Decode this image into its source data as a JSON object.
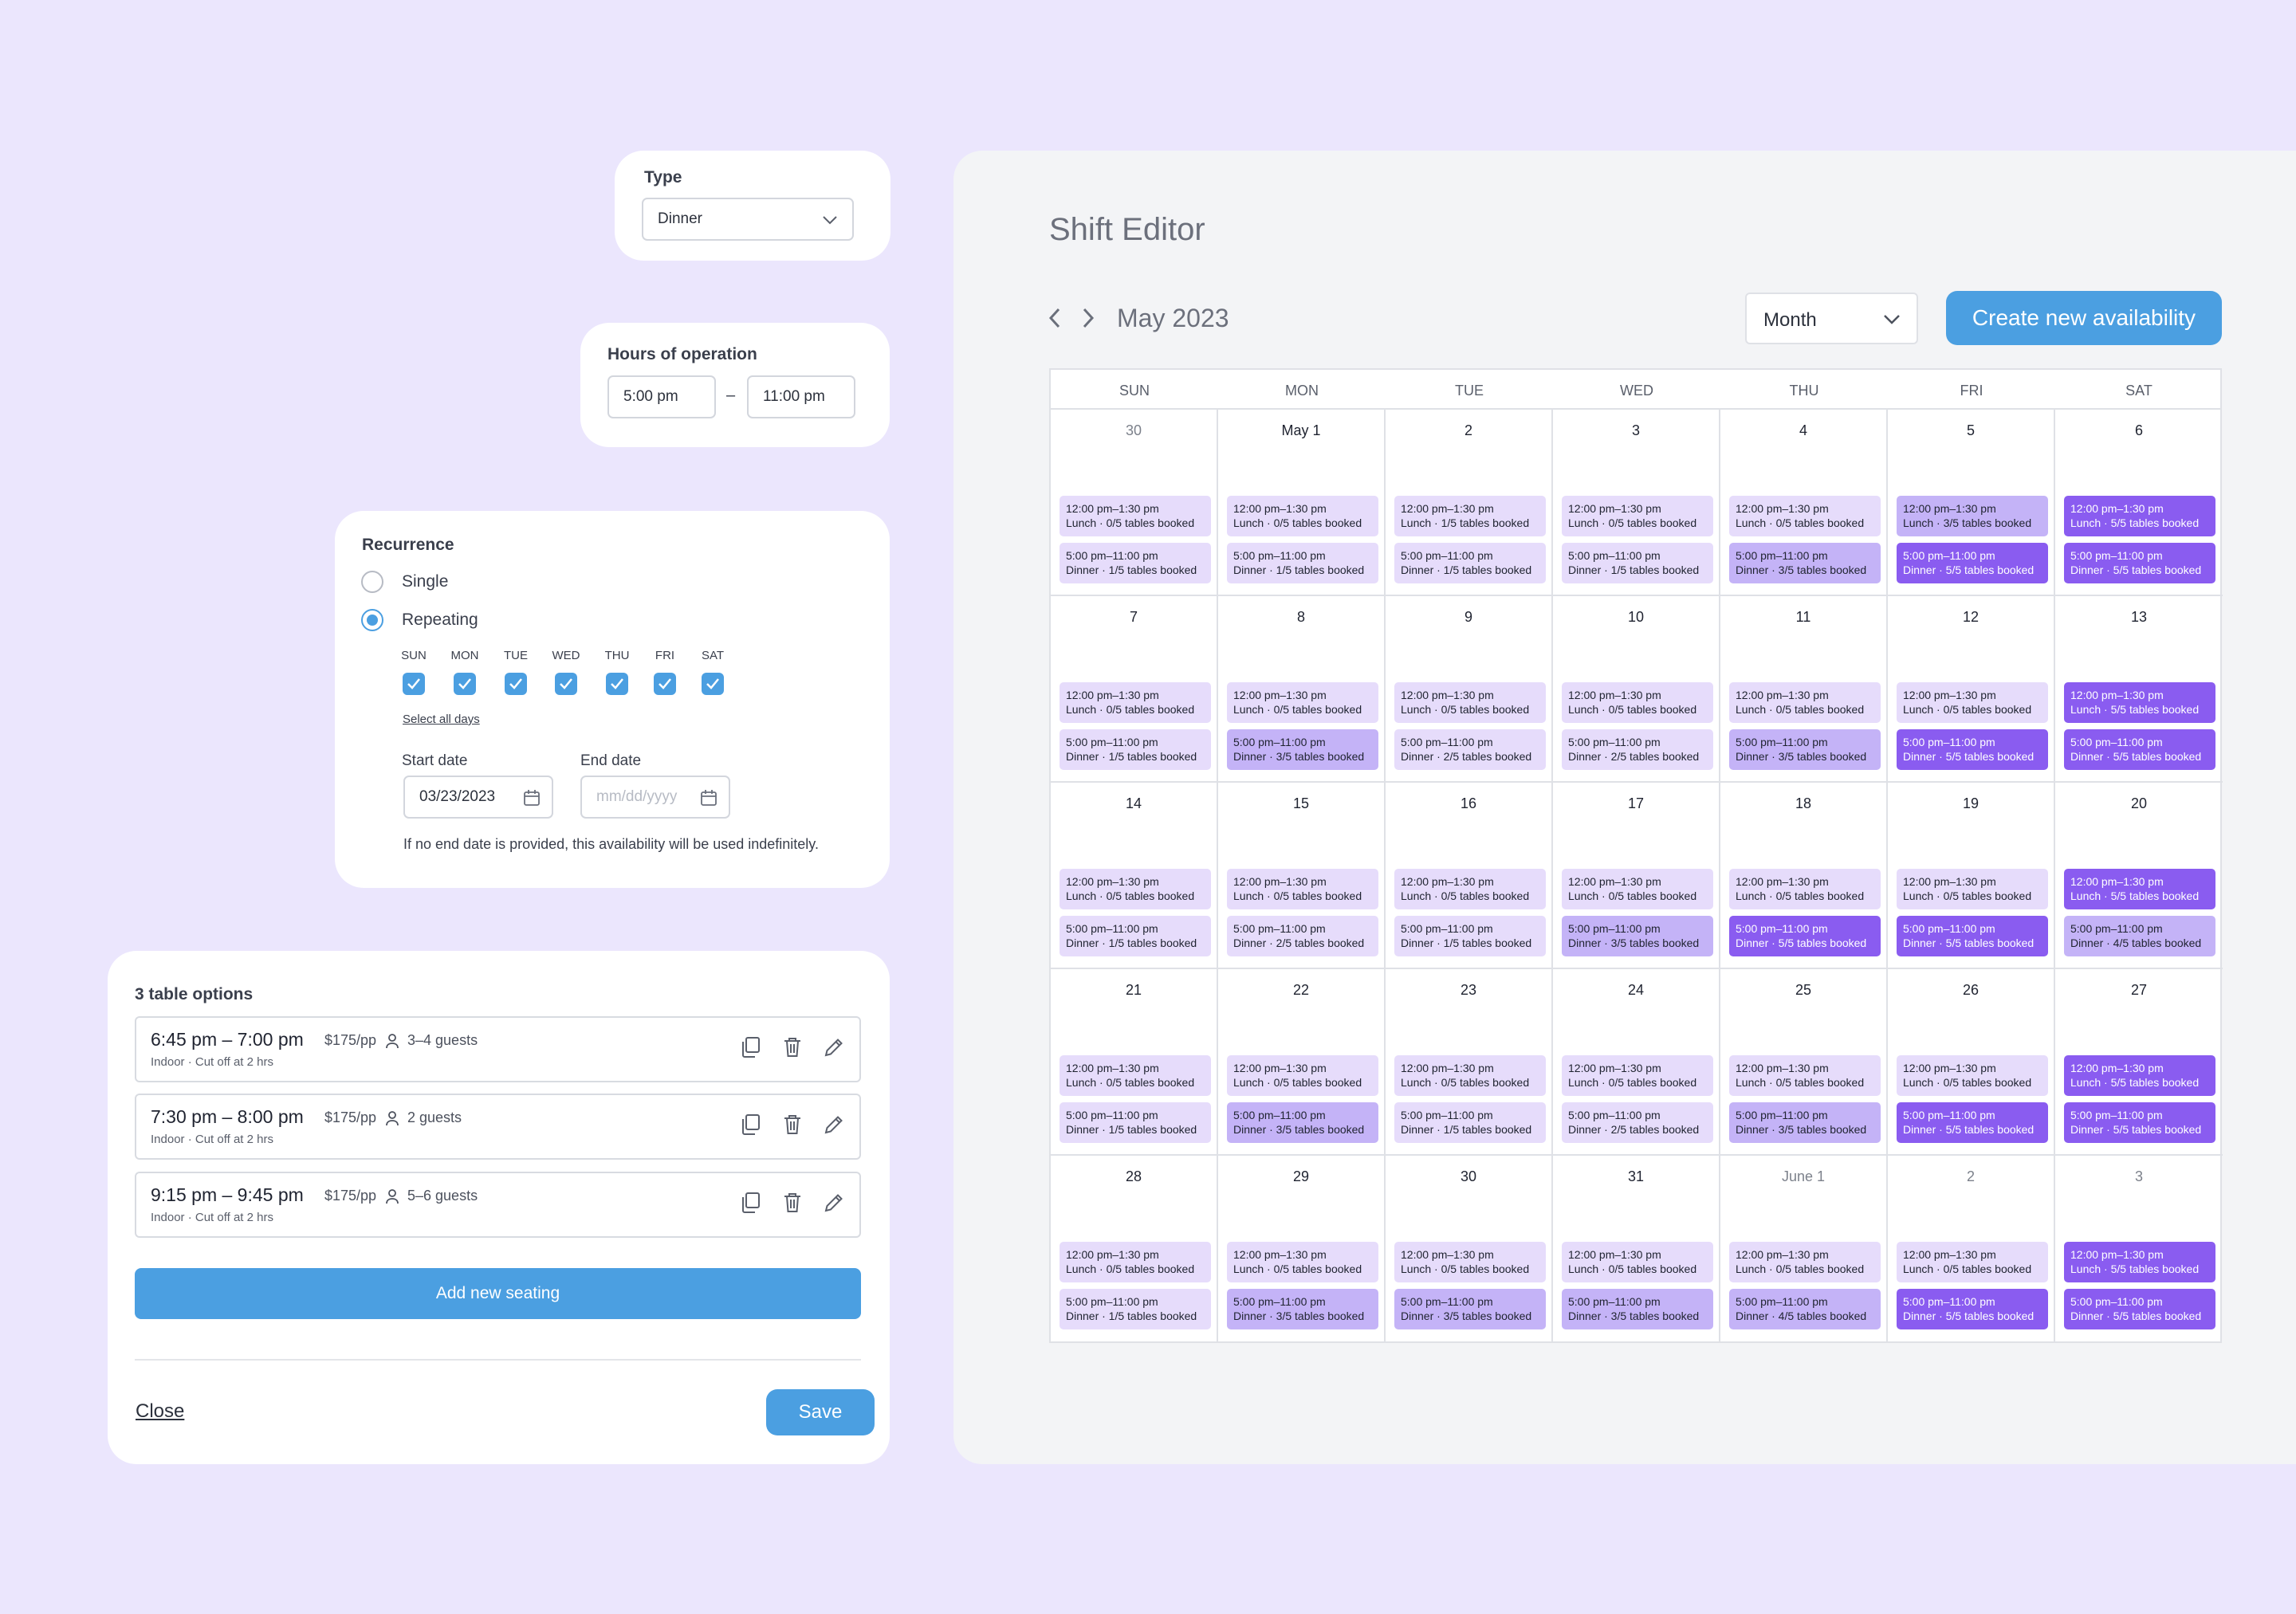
{
  "type_card": {
    "label": "Type",
    "value": "Dinner"
  },
  "hours_card": {
    "label": "Hours of operation",
    "start": "5:00 pm",
    "dash": "–",
    "end": "11:00 pm"
  },
  "recurrence": {
    "label": "Recurrence",
    "single": "Single",
    "repeating": "Repeating",
    "days": [
      "SUN",
      "MON",
      "TUE",
      "WED",
      "THU",
      "FRI",
      "SAT"
    ],
    "select_all": "Select all days",
    "start_label": "Start date",
    "start_value": "03/23/2023",
    "end_label": "End date",
    "end_placeholder": "mm/dd/yyyy",
    "note": "If no end date is provided, this availability will be used indefinitely."
  },
  "tables": {
    "title": "3 table options",
    "options": [
      {
        "time": "6:45 pm – 7:00 pm",
        "price": "$175/pp",
        "guests": "3–4 guests",
        "sub": "Indoor · Cut off at 2 hrs"
      },
      {
        "time": "7:30 pm – 8:00 pm",
        "price": "$175/pp",
        "guests": "2 guests",
        "sub": "Indoor · Cut off at 2 hrs"
      },
      {
        "time": "9:15 pm – 9:45 pm",
        "price": "$175/pp",
        "guests": "5–6 guests",
        "sub": "Indoor · Cut off at 2 hrs"
      }
    ],
    "add_label": "Add new seating",
    "close_label": "Close",
    "save_label": "Save"
  },
  "editor": {
    "title": "Shift Editor",
    "month_label": "May 2023",
    "view": "Month",
    "create_label": "Create new availability",
    "weekdays": [
      "SUN",
      "MON",
      "TUE",
      "WED",
      "THU",
      "FRI",
      "SAT"
    ],
    "lunch_time": "12:00 pm–1:30 pm",
    "dinner_time": "5:00 pm–11:00 pm",
    "weeks": [
      [
        {
          "d": "30",
          "out": true,
          "l": "Lunch · 0/5 tables booked",
          "lv": 0,
          "n": "Dinner · 1/5 tables booked",
          "nv": 1
        },
        {
          "d": "May 1",
          "l": "Lunch · 0/5 tables booked",
          "lv": 0,
          "n": "Dinner · 1/5 tables booked",
          "nv": 1
        },
        {
          "d": "2",
          "l": "Lunch · 1/5 tables booked",
          "lv": 1,
          "n": "Dinner · 1/5 tables booked",
          "nv": 1
        },
        {
          "d": "3",
          "l": "Lunch · 0/5 tables booked",
          "lv": 0,
          "n": "Dinner · 1/5 tables booked",
          "nv": 1
        },
        {
          "d": "4",
          "l": "Lunch · 0/5 tables booked",
          "lv": 0,
          "n": "Dinner · 3/5 tables booked",
          "nv": 3
        },
        {
          "d": "5",
          "l": "Lunch · 3/5 tables booked",
          "lv": 3,
          "n": "Dinner · 5/5 tables booked",
          "nv": 5
        },
        {
          "d": "6",
          "l": "Lunch · 5/5 tables booked",
          "lv": 5,
          "n": "Dinner · 5/5 tables booked",
          "nv": 5
        }
      ],
      [
        {
          "d": "7",
          "l": "Lunch · 0/5 tables booked",
          "lv": 0,
          "n": "Dinner · 1/5 tables booked",
          "nv": 1
        },
        {
          "d": "8",
          "l": "Lunch · 0/5 tables booked",
          "lv": 0,
          "n": "Dinner · 3/5 tables booked",
          "nv": 3
        },
        {
          "d": "9",
          "l": "Lunch · 0/5 tables booked",
          "lv": 0,
          "n": "Dinner · 2/5 tables booked",
          "nv": 2
        },
        {
          "d": "10",
          "l": "Lunch · 0/5 tables booked",
          "lv": 0,
          "n": "Dinner · 2/5 tables booked",
          "nv": 2
        },
        {
          "d": "11",
          "l": "Lunch · 0/5 tables booked",
          "lv": 0,
          "n": "Dinner · 3/5 tables booked",
          "nv": 3
        },
        {
          "d": "12",
          "l": "Lunch · 0/5 tables booked",
          "lv": 0,
          "n": "Dinner · 5/5 tables booked",
          "nv": 5
        },
        {
          "d": "13",
          "l": "Lunch · 5/5 tables booked",
          "lv": 5,
          "n": "Dinner · 5/5 tables booked",
          "nv": 5
        }
      ],
      [
        {
          "d": "14",
          "l": "Lunch · 0/5 tables booked",
          "lv": 0,
          "n": "Dinner · 1/5 tables booked",
          "nv": 1
        },
        {
          "d": "15",
          "l": "Lunch · 0/5 tables booked",
          "lv": 0,
          "n": "Dinner · 2/5 tables booked",
          "nv": 2
        },
        {
          "d": "16",
          "l": "Lunch · 0/5 tables booked",
          "lv": 0,
          "n": "Dinner · 1/5 tables booked",
          "nv": 1
        },
        {
          "d": "17",
          "l": "Lunch · 0/5 tables booked",
          "lv": 0,
          "n": "Dinner · 3/5 tables booked",
          "nv": 3
        },
        {
          "d": "18",
          "l": "Lunch · 0/5 tables booked",
          "lv": 0,
          "n": "Dinner · 5/5 tables booked",
          "nv": 5
        },
        {
          "d": "19",
          "l": "Lunch · 0/5 tables booked",
          "lv": 0,
          "n": "Dinner · 5/5 tables booked",
          "nv": 5
        },
        {
          "d": "20",
          "l": "Lunch · 5/5 tables booked",
          "lv": 5,
          "n": "Dinner · 4/5 tables booked",
          "nv": 4
        }
      ],
      [
        {
          "d": "21",
          "l": "Lunch · 0/5 tables booked",
          "lv": 0,
          "n": "Dinner · 1/5 tables booked",
          "nv": 1
        },
        {
          "d": "22",
          "l": "Lunch · 0/5 tables booked",
          "lv": 0,
          "n": "Dinner · 3/5 tables booked",
          "nv": 3
        },
        {
          "d": "23",
          "l": "Lunch · 0/5 tables booked",
          "lv": 0,
          "n": "Dinner · 1/5 tables booked",
          "nv": 1
        },
        {
          "d": "24",
          "l": "Lunch · 0/5 tables booked",
          "lv": 0,
          "n": "Dinner · 2/5 tables booked",
          "nv": 2
        },
        {
          "d": "25",
          "l": "Lunch · 0/5 tables booked",
          "lv": 0,
          "n": "Dinner · 3/5 tables booked",
          "nv": 3
        },
        {
          "d": "26",
          "l": "Lunch · 0/5 tables booked",
          "lv": 0,
          "n": "Dinner · 5/5 tables booked",
          "nv": 5
        },
        {
          "d": "27",
          "l": "Lunch · 5/5 tables booked",
          "lv": 5,
          "n": "Dinner · 5/5 tables booked",
          "nv": 5
        }
      ],
      [
        {
          "d": "28",
          "l": "Lunch · 0/5 tables booked",
          "lv": 0,
          "n": "Dinner · 1/5 tables booked",
          "nv": 1
        },
        {
          "d": "29",
          "l": "Lunch · 0/5 tables booked",
          "lv": 0,
          "n": "Dinner · 3/5 tables booked",
          "nv": 3
        },
        {
          "d": "30",
          "l": "Lunch · 0/5 tables booked",
          "lv": 0,
          "n": "Dinner · 3/5 tables booked",
          "nv": 3
        },
        {
          "d": "31",
          "l": "Lunch · 0/5 tables booked",
          "lv": 0,
          "n": "Dinner · 3/5 tables booked",
          "nv": 3
        },
        {
          "d": "June 1",
          "out": true,
          "l": "Lunch · 0/5 tables booked",
          "lv": 0,
          "n": "Dinner · 4/5 tables booked",
          "nv": 4
        },
        {
          "d": "2",
          "out": true,
          "l": "Lunch · 0/5 tables booked",
          "lv": 0,
          "n": "Dinner · 5/5 tables booked",
          "nv": 5
        },
        {
          "d": "3",
          "out": true,
          "l": "Lunch · 5/5 tables booked",
          "lv": 5,
          "n": "Dinner · 5/5 tables booked",
          "nv": 5
        }
      ]
    ]
  }
}
